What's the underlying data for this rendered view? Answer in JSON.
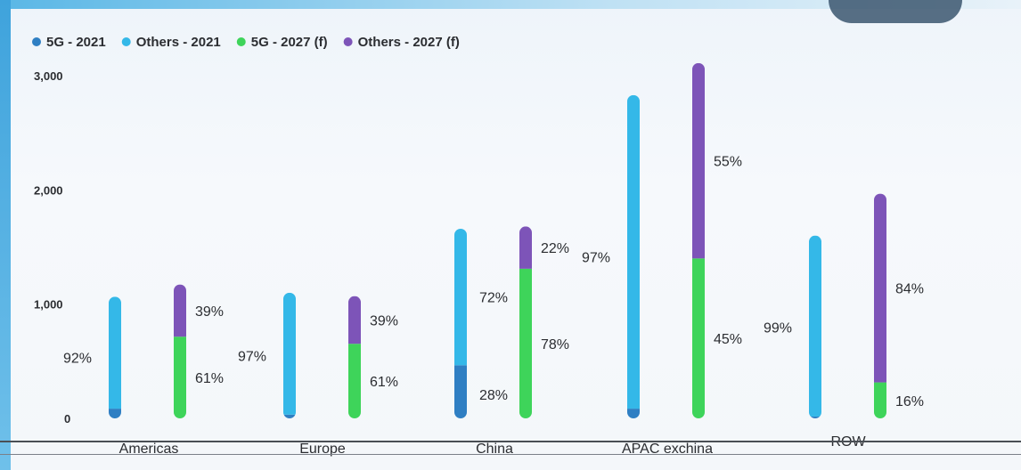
{
  "chart_data": {
    "type": "bar",
    "stacked": true,
    "categories": [
      "Americas",
      "Europe",
      "China",
      "APAC exchina",
      "ROW"
    ],
    "series_groups": [
      {
        "year": "2021",
        "series": [
          {
            "name": "5G - 2021",
            "color": "#2f7fc3",
            "values": [
              85,
              33,
              465,
              85,
              16
            ]
          },
          {
            "name": "Others - 2021",
            "color": "#34b8e8",
            "values": [
              980,
              1067,
              1195,
              2745,
              1584
            ]
          }
        ],
        "labels": [
          {
            "name": "5G - 2021",
            "values": [
              "",
              "",
              "28%",
              "",
              ""
            ]
          },
          {
            "name": "Others - 2021",
            "values": [
              "92%",
              "97%",
              "72%",
              "97%",
              "99%"
            ]
          }
        ]
      },
      {
        "year": "2027 (f)",
        "series": [
          {
            "name": "5G - 2027 (f)",
            "color": "#3ed45a",
            "values": [
              715,
              653,
              1310,
              1400,
              315
            ]
          },
          {
            "name": "Others - 2027 (f)",
            "color": "#7d54b8",
            "values": [
              457,
              417,
              370,
              1710,
              1652
            ]
          }
        ],
        "labels": [
          {
            "name": "5G - 2027 (f)",
            "values": [
              "61%",
              "61%",
              "78%",
              "45%",
              "16%"
            ]
          },
          {
            "name": "Others - 2027 (f)",
            "values": [
              "39%",
              "39%",
              "22%",
              "55%",
              "84%"
            ]
          }
        ]
      }
    ],
    "legend": [
      {
        "label": "5G - 2021",
        "color": "#2f7fc3"
      },
      {
        "label": "Others - 2021",
        "color": "#34b8e8"
      },
      {
        "label": "5G - 2027 (f)",
        "color": "#3ed45a"
      },
      {
        "label": "Others - 2027 (f)",
        "color": "#7d54b8"
      }
    ],
    "legend_position": "top-left",
    "y_ticks": [
      "0",
      "1,000",
      "2,000",
      "3,000"
    ],
    "y_tick_values": [
      0,
      1000,
      2000,
      3000
    ],
    "ylim": [
      0,
      3000
    ],
    "grid": false,
    "title": "",
    "xlabel": "",
    "ylabel": ""
  }
}
